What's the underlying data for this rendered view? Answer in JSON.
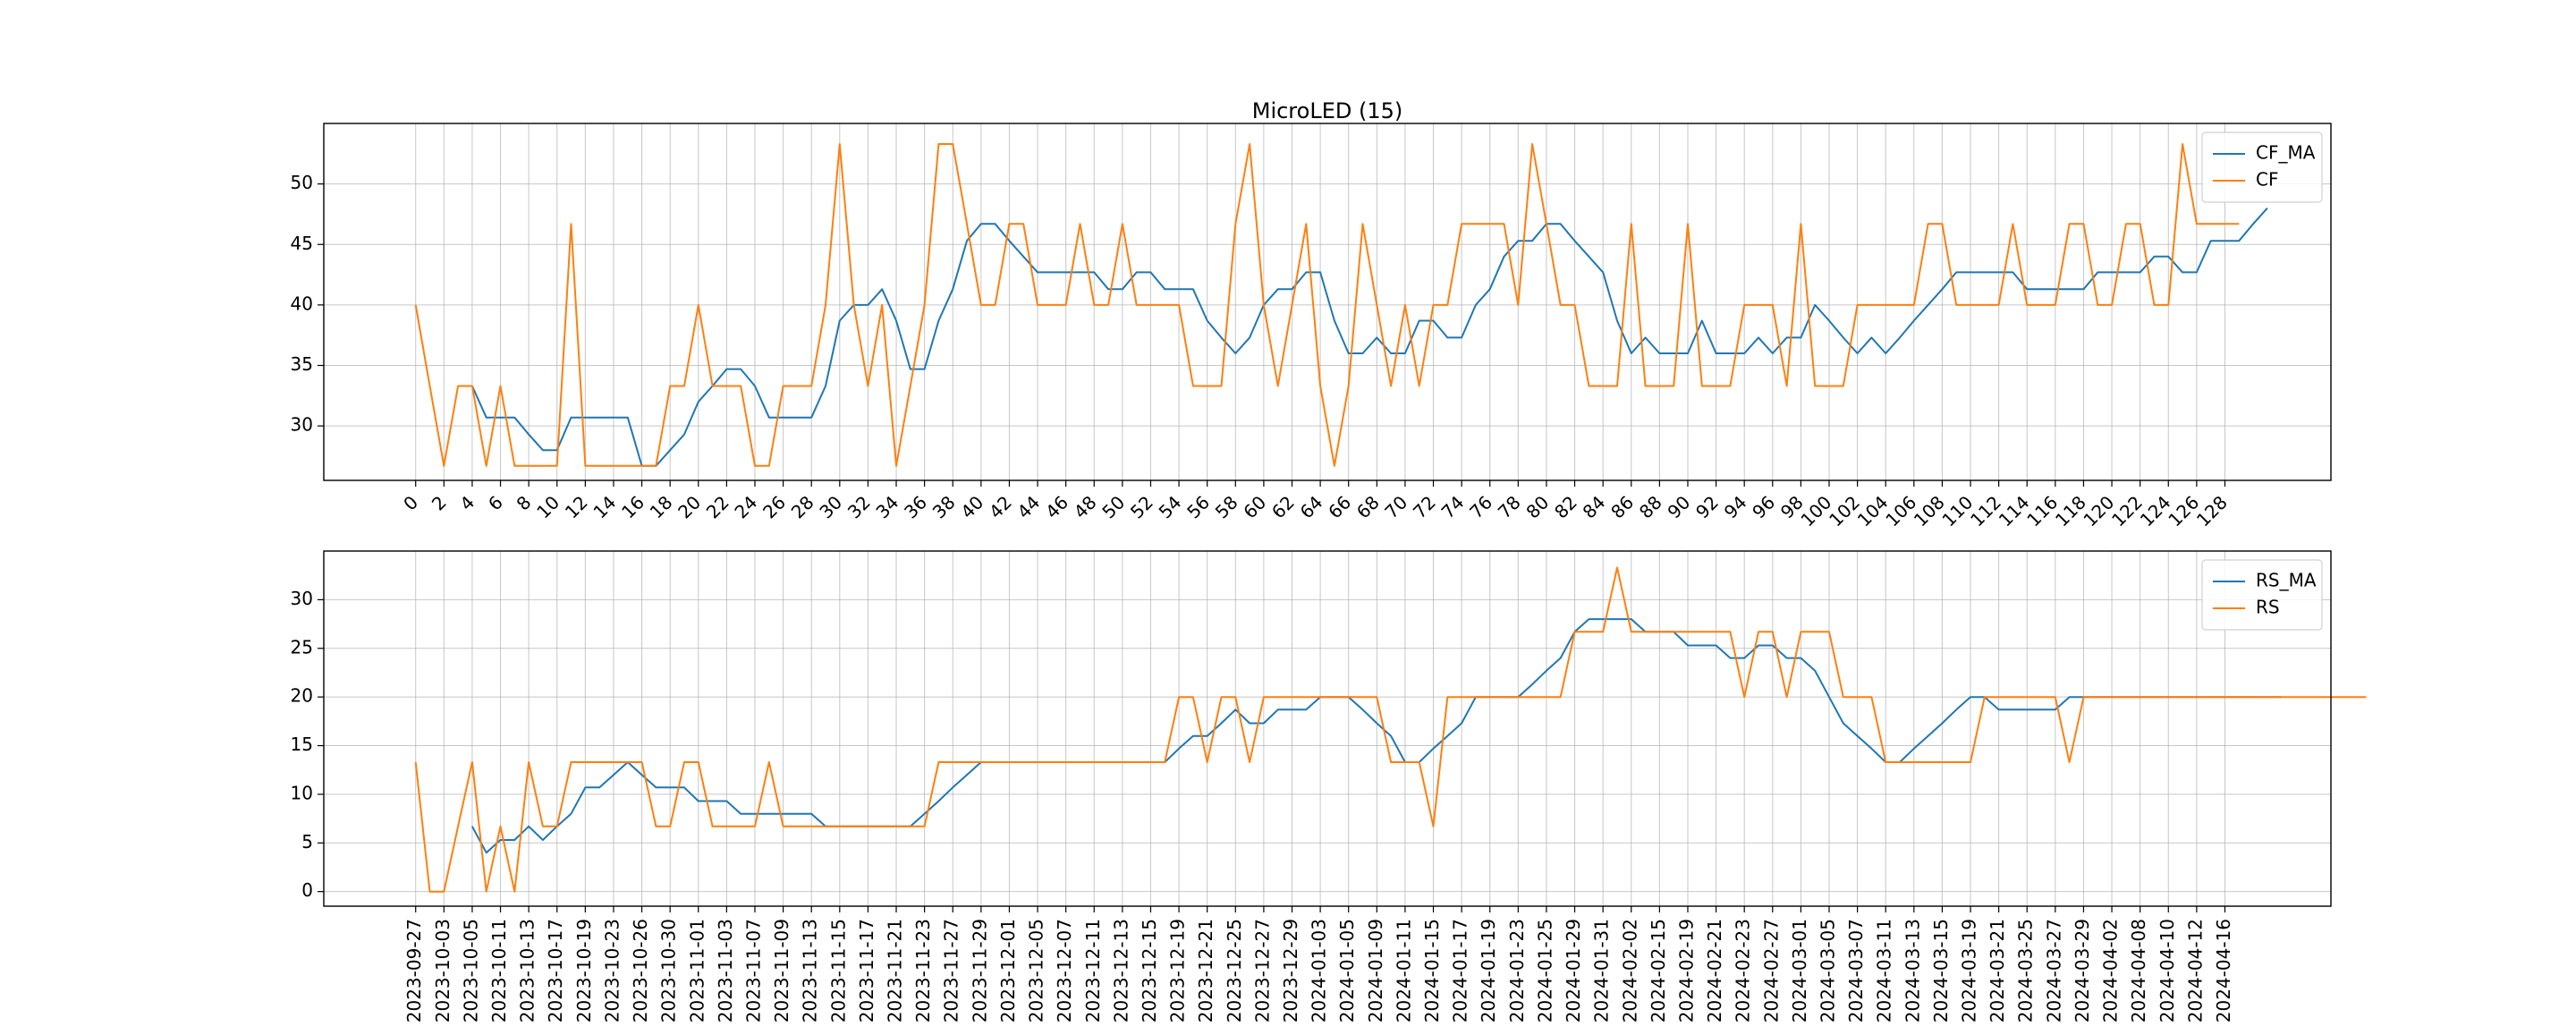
{
  "figure_title": "MicroLED (15)",
  "colors": {
    "ma": "#1f77b4",
    "raw": "#ff7f0e"
  },
  "chart_data": [
    {
      "type": "line",
      "title": "MicroLED (15)",
      "xlabel": "",
      "ylabel": "",
      "x_tick_labels": [
        "0",
        "2",
        "4",
        "6",
        "8",
        "10",
        "12",
        "14",
        "16",
        "18",
        "20",
        "22",
        "24",
        "26",
        "28",
        "30",
        "32",
        "34",
        "36",
        "38",
        "40",
        "42",
        "44",
        "46",
        "48",
        "50",
        "52",
        "54",
        "56",
        "58",
        "60",
        "62",
        "64",
        "66",
        "68",
        "70",
        "72",
        "74",
        "76",
        "78",
        "80",
        "82",
        "84",
        "86",
        "88",
        "90",
        "92",
        "94",
        "96",
        "98",
        "100",
        "102",
        "104",
        "106",
        "108",
        "110",
        "112",
        "114",
        "116",
        "118",
        "120",
        "122",
        "124",
        "126",
        "128"
      ],
      "xlim": [
        -6.5,
        135.5
      ],
      "ylim": [
        25.5,
        55
      ],
      "y_ticks": [
        30,
        35,
        40,
        45,
        50
      ],
      "grid": true,
      "legend_position": "top-right",
      "series": [
        {
          "name": "CF_MA",
          "color": "#1f77b4",
          "start_index": 4,
          "values": [
            33.3,
            30.7,
            30.7,
            30.7,
            29.3,
            28.0,
            28.0,
            30.7,
            30.7,
            30.7,
            30.7,
            30.7,
            26.7,
            26.7,
            28.0,
            29.3,
            32.0,
            33.3,
            34.7,
            34.7,
            33.3,
            30.7,
            30.7,
            30.7,
            30.7,
            33.3,
            38.7,
            40.0,
            40.0,
            41.3,
            38.7,
            34.7,
            34.7,
            38.7,
            41.3,
            45.3,
            46.7,
            46.7,
            45.3,
            44.0,
            42.7,
            42.7,
            42.7,
            42.7,
            42.7,
            41.3,
            41.3,
            42.7,
            42.7,
            41.3,
            41.3,
            41.3,
            38.7,
            37.3,
            36.0,
            37.3,
            40.0,
            41.3,
            41.3,
            42.7,
            42.7,
            38.7,
            36.0,
            36.0,
            37.3,
            36.0,
            36.0,
            38.7,
            38.7,
            37.3,
            37.3,
            40.0,
            41.3,
            44.0,
            45.3,
            45.3,
            46.7,
            46.7,
            45.3,
            44.0,
            42.7,
            38.7,
            36.0,
            37.3,
            36.0,
            36.0,
            36.0,
            38.7,
            36.0,
            36.0,
            36.0,
            37.3,
            36.0,
            37.3,
            37.3,
            40.0,
            38.7,
            37.3,
            36.0,
            37.3,
            36.0,
            37.3,
            38.7,
            40.0,
            41.3,
            42.7,
            42.7,
            42.7,
            42.7,
            42.7,
            41.3,
            41.3,
            41.3,
            41.3,
            41.3,
            42.7,
            42.7,
            42.7,
            42.7,
            44.0,
            44.0,
            42.7,
            42.7,
            45.3,
            45.3,
            45.3,
            46.7,
            48.0
          ]
        },
        {
          "name": "CF",
          "color": "#ff7f0e",
          "start_index": 0,
          "values": [
            40.0,
            33.3,
            26.7,
            33.3,
            33.3,
            26.7,
            33.3,
            26.7,
            26.7,
            26.7,
            26.7,
            46.7,
            26.7,
            26.7,
            26.7,
            26.7,
            26.7,
            26.7,
            33.3,
            33.3,
            40.0,
            33.3,
            33.3,
            33.3,
            26.7,
            26.7,
            33.3,
            33.3,
            33.3,
            40.0,
            53.3,
            40.0,
            33.3,
            40.0,
            26.7,
            33.3,
            40.0,
            53.3,
            53.3,
            46.7,
            40.0,
            40.0,
            46.7,
            46.7,
            40.0,
            40.0,
            40.0,
            46.7,
            40.0,
            40.0,
            46.7,
            40.0,
            40.0,
            40.0,
            40.0,
            33.3,
            33.3,
            33.3,
            46.7,
            53.3,
            40.0,
            33.3,
            40.0,
            46.7,
            33.3,
            26.7,
            33.3,
            46.7,
            40.0,
            33.3,
            40.0,
            33.3,
            40.0,
            40.0,
            46.7,
            46.7,
            46.7,
            46.7,
            40.0,
            53.3,
            46.7,
            40.0,
            40.0,
            33.3,
            33.3,
            33.3,
            46.7,
            33.3,
            33.3,
            33.3,
            46.7,
            33.3,
            33.3,
            33.3,
            40.0,
            40.0,
            40.0,
            33.3,
            46.7,
            33.3,
            33.3,
            33.3,
            40.0,
            40.0,
            40.0,
            40.0,
            40.0,
            46.7,
            46.7,
            40.0,
            40.0,
            40.0,
            40.0,
            46.7,
            40.0,
            40.0,
            40.0,
            46.7,
            46.7,
            40.0,
            40.0,
            46.7,
            46.7,
            40.0,
            40.0,
            53.3,
            46.7,
            46.7,
            46.7,
            46.7
          ]
        }
      ]
    },
    {
      "type": "line",
      "title": "",
      "xlabel": "",
      "ylabel": "",
      "x_tick_labels": [
        "2023-09-27",
        "2023-10-03",
        "2023-10-05",
        "2023-10-11",
        "2023-10-13",
        "2023-10-17",
        "2023-10-19",
        "2023-10-23",
        "2023-10-26",
        "2023-10-30",
        "2023-11-01",
        "2023-11-03",
        "2023-11-07",
        "2023-11-09",
        "2023-11-13",
        "2023-11-15",
        "2023-11-17",
        "2023-11-21",
        "2023-11-23",
        "2023-11-27",
        "2023-11-29",
        "2023-12-01",
        "2023-12-05",
        "2023-12-07",
        "2023-12-11",
        "2023-12-13",
        "2023-12-15",
        "2023-12-19",
        "2023-12-21",
        "2023-12-25",
        "2023-12-27",
        "2023-12-29",
        "2024-01-03",
        "2024-01-05",
        "2024-01-09",
        "2024-01-11",
        "2024-01-15",
        "2024-01-17",
        "2024-01-19",
        "2024-01-23",
        "2024-01-25",
        "2024-01-29",
        "2024-01-31",
        "2024-02-02",
        "2024-02-15",
        "2024-02-19",
        "2024-02-21",
        "2024-02-23",
        "2024-02-27",
        "2024-03-01",
        "2024-03-05",
        "2024-03-07",
        "2024-03-11",
        "2024-03-13",
        "2024-03-15",
        "2024-03-19",
        "2024-03-21",
        "2024-03-25",
        "2024-03-27",
        "2024-03-29",
        "2024-04-02",
        "2024-04-08",
        "2024-04-10",
        "2024-04-12",
        "2024-04-16"
      ],
      "xlim": [
        -6.5,
        135.5
      ],
      "ylim": [
        -1.5,
        35
      ],
      "y_ticks": [
        0,
        5,
        10,
        15,
        20,
        25,
        30
      ],
      "grid": true,
      "legend_position": "top-right",
      "series": [
        {
          "name": "RS_MA",
          "color": "#1f77b4",
          "start_index": 4,
          "values": [
            6.7,
            4.0,
            5.3,
            5.3,
            6.7,
            5.3,
            6.7,
            8.0,
            10.7,
            10.7,
            12.0,
            13.3,
            12.0,
            10.7,
            10.7,
            10.7,
            9.3,
            9.3,
            9.3,
            8.0,
            8.0,
            8.0,
            8.0,
            8.0,
            8.0,
            6.7,
            6.7,
            6.7,
            6.7,
            6.7,
            6.7,
            6.7,
            8.0,
            9.3,
            10.7,
            12.0,
            13.3,
            13.3,
            13.3,
            13.3,
            13.3,
            13.3,
            13.3,
            13.3,
            13.3,
            13.3,
            13.3,
            13.3,
            13.3,
            13.3,
            14.7,
            16.0,
            16.0,
            17.3,
            18.7,
            17.3,
            17.3,
            18.7,
            18.7,
            18.7,
            20.0,
            20.0,
            20.0,
            18.7,
            17.3,
            16.0,
            13.3,
            13.3,
            14.7,
            16.0,
            17.3,
            20.0,
            20.0,
            20.0,
            20.0,
            21.3,
            22.7,
            24.0,
            26.7,
            28.0,
            28.0,
            28.0,
            28.0,
            26.7,
            26.7,
            26.7,
            25.3,
            25.3,
            25.3,
            24.0,
            24.0,
            25.3,
            25.3,
            24.0,
            24.0,
            22.7,
            20.0,
            17.3,
            16.0,
            14.7,
            13.3,
            13.3,
            14.7,
            16.0,
            17.3,
            18.7,
            20.0,
            20.0,
            18.7,
            18.7,
            18.7,
            18.7,
            18.7,
            20.0,
            20.0,
            20.0,
            20.0,
            20.0,
            20.0,
            20.0,
            20.0,
            20.0,
            20.0,
            20.0,
            20.0,
            20.0,
            20.0,
            20.0,
            20.0
          ]
        },
        {
          "name": "RS",
          "color": "#ff7f0e",
          "start_index": 0,
          "values": [
            13.3,
            0.0,
            0.0,
            6.7,
            13.3,
            0.0,
            6.7,
            0.0,
            13.3,
            6.7,
            6.7,
            13.3,
            13.3,
            13.3,
            13.3,
            13.3,
            13.3,
            6.7,
            6.7,
            13.3,
            13.3,
            6.7,
            6.7,
            6.7,
            6.7,
            13.3,
            6.7,
            6.7,
            6.7,
            6.7,
            6.7,
            6.7,
            6.7,
            6.7,
            6.7,
            6.7,
            6.7,
            13.3,
            13.3,
            13.3,
            13.3,
            13.3,
            13.3,
            13.3,
            13.3,
            13.3,
            13.3,
            13.3,
            13.3,
            13.3,
            13.3,
            13.3,
            13.3,
            13.3,
            20.0,
            20.0,
            13.3,
            20.0,
            20.0,
            13.3,
            20.0,
            20.0,
            20.0,
            20.0,
            20.0,
            20.0,
            20.0,
            20.0,
            20.0,
            13.3,
            13.3,
            13.3,
            6.7,
            20.0,
            20.0,
            20.0,
            20.0,
            20.0,
            20.0,
            20.0,
            20.0,
            20.0,
            26.7,
            26.7,
            26.7,
            33.3,
            26.7,
            26.7,
            26.7,
            26.7,
            26.7,
            26.7,
            26.7,
            26.7,
            20.0,
            26.7,
            26.7,
            20.0,
            26.7,
            26.7,
            26.7,
            20.0,
            20.0,
            20.0,
            13.3,
            13.3,
            13.3,
            13.3,
            13.3,
            13.3,
            13.3,
            20.0,
            20.0,
            20.0,
            20.0,
            20.0,
            20.0,
            13.3,
            20.0,
            20.0,
            20.0,
            20.0,
            20.0,
            20.0,
            20.0,
            20.0,
            20.0,
            20.0,
            20.0,
            20.0,
            20.0,
            20.0,
            20.0,
            20.0,
            20.0,
            20.0,
            20.0,
            20.0,
            20.0
          ]
        }
      ]
    }
  ]
}
